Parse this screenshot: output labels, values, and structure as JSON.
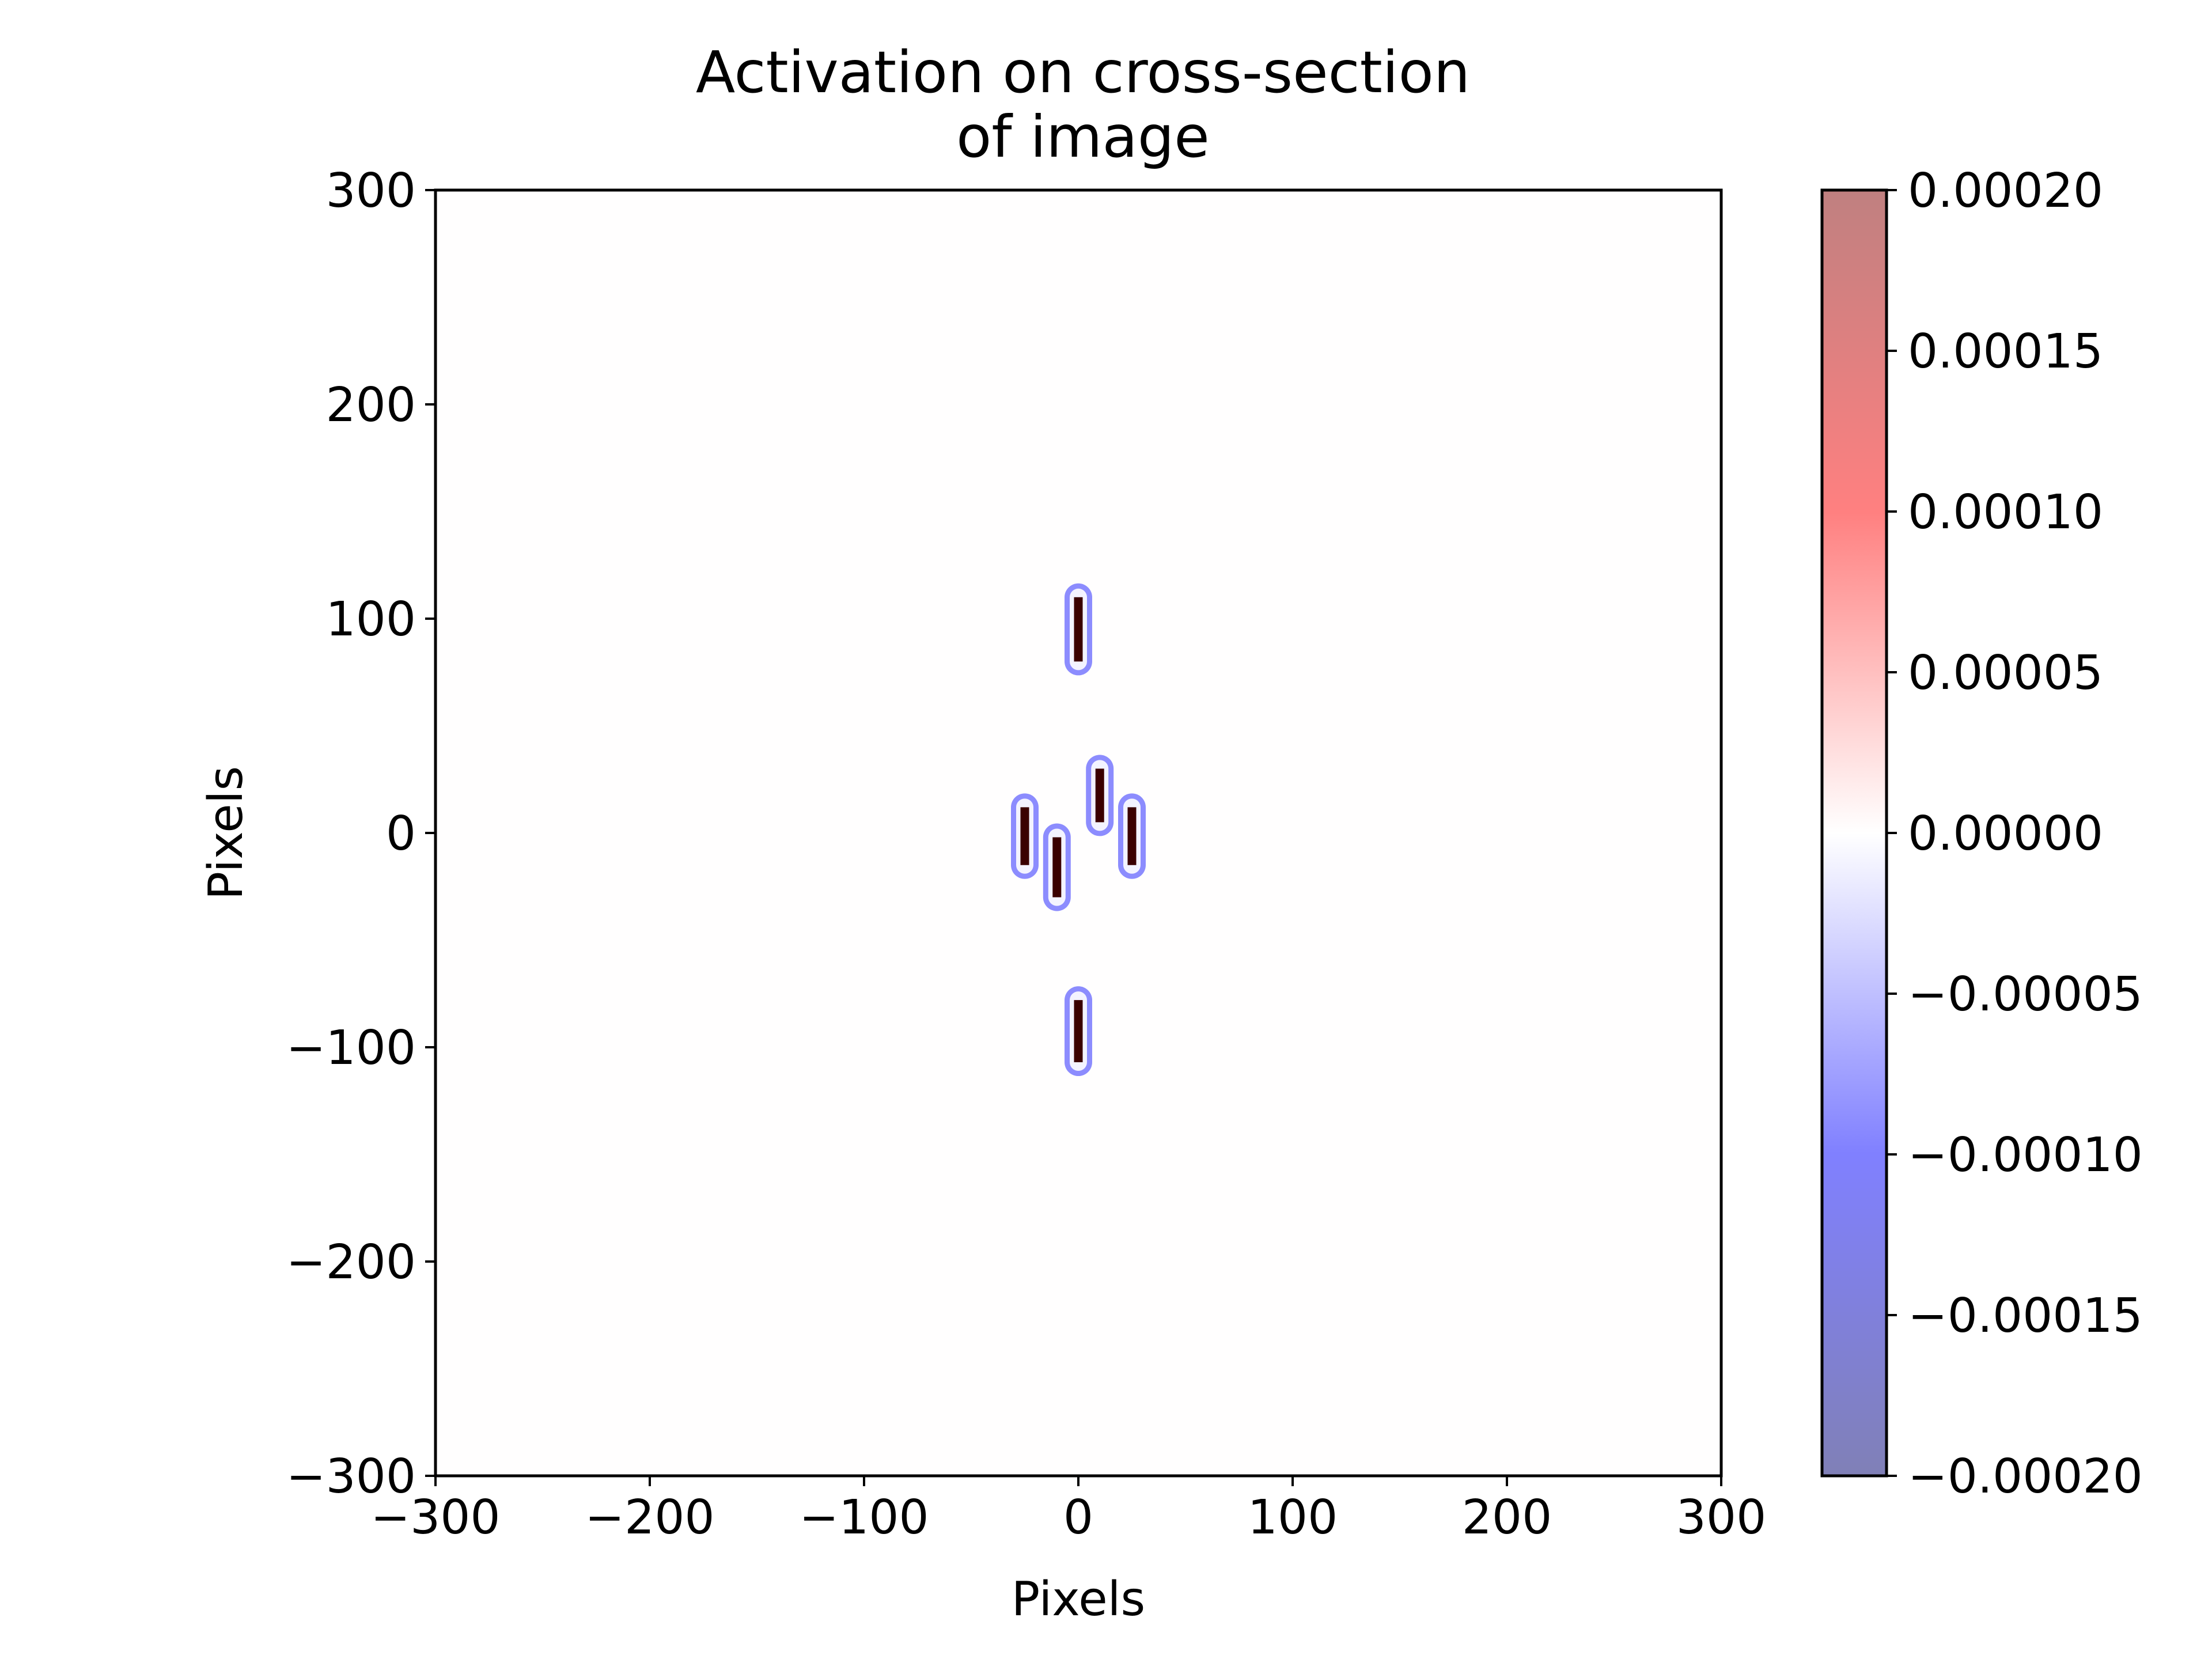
{
  "chart_data": {
    "type": "heatmap",
    "title_lines": [
      "Activation on cross-section",
      "of image"
    ],
    "xlabel": "Pixels",
    "ylabel": "Pixels",
    "xlim": [
      -300,
      300
    ],
    "ylim": [
      -300,
      300
    ],
    "x_ticks": [
      -300,
      -200,
      -100,
      0,
      100,
      200,
      300
    ],
    "x_tick_labels": [
      "−300",
      "−200",
      "−100",
      "0",
      "100",
      "200",
      "300"
    ],
    "y_ticks": [
      -300,
      -200,
      -100,
      0,
      100,
      200,
      300
    ],
    "y_tick_labels": [
      "−300",
      "−200",
      "−100",
      "0",
      "100",
      "200",
      "300"
    ],
    "grid": false,
    "background_value": 0,
    "segments": [
      {
        "x": 0,
        "y_min": 80,
        "y_max": 110
      },
      {
        "x": 10,
        "y_min": 5,
        "y_max": 30
      },
      {
        "x": -25,
        "y_min": -15,
        "y_max": 12
      },
      {
        "x": 25,
        "y_min": -15,
        "y_max": 12
      },
      {
        "x": -10,
        "y_min": -30,
        "y_max": -2
      },
      {
        "x": 0,
        "y_min": -107,
        "y_max": -78
      }
    ],
    "segment_color": "#3a0000",
    "negative_halo_color": "#8080ff",
    "positive_halo_color": "#ffb0b0",
    "colorbar": {
      "vmin": -0.0002,
      "vmax": 0.0002,
      "ticks": [
        0.0002,
        0.00015,
        0.0001,
        5e-05,
        0,
        -5e-05,
        -0.0001,
        -0.00015,
        -0.0002
      ],
      "tick_labels": [
        "0.00020",
        "0.00015",
        "0.00010",
        "0.00005",
        "0.00000",
        "−0.00005",
        "−0.00010",
        "−0.00015",
        "−0.00020"
      ],
      "colormap": "bwr",
      "colors": {
        "low": "#00006e",
        "mid": "#ffffff",
        "high": "#800000"
      },
      "alpha": 0.5
    }
  }
}
